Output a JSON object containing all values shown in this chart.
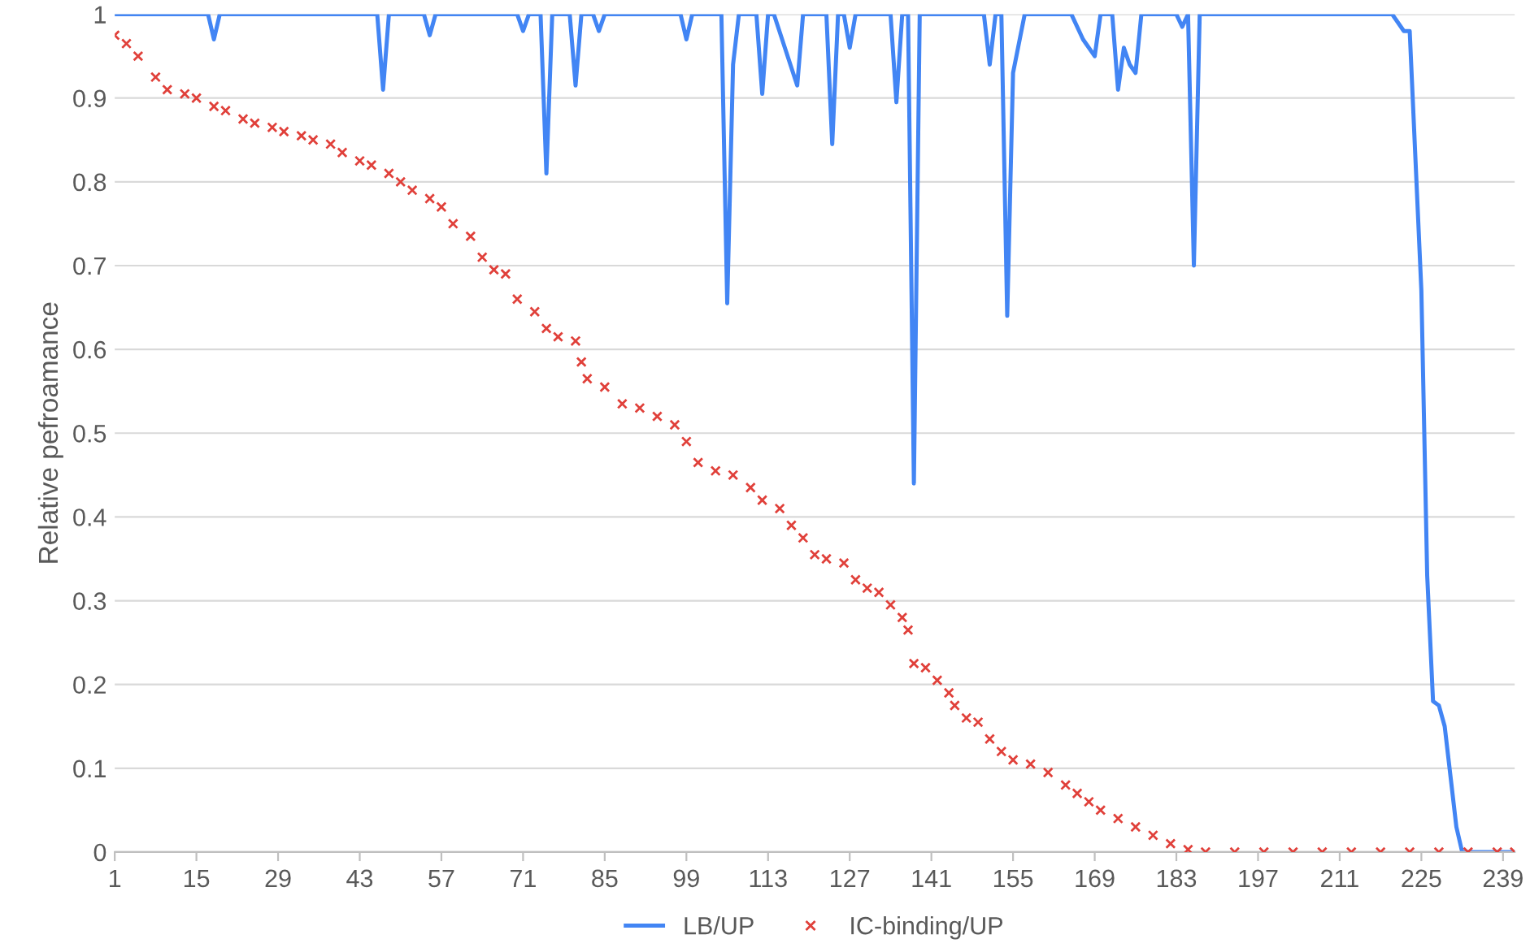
{
  "chart_data": {
    "type": "line",
    "ylabel": "Relative pefroamance",
    "xlim": [
      1,
      241
    ],
    "xticks": [
      1,
      15,
      29,
      43,
      57,
      71,
      85,
      99,
      113,
      127,
      141,
      155,
      169,
      183,
      197,
      211,
      225,
      239
    ],
    "ylim": [
      0,
      1
    ],
    "yticks": [
      0,
      0.1,
      0.2,
      0.3,
      0.4,
      0.5,
      0.6,
      0.7,
      0.8,
      0.9,
      1
    ],
    "grid": "y",
    "legend": "bottom",
    "series": [
      {
        "name": "LB/UP",
        "marker": "none",
        "color": "#4285f4",
        "x": [
          1,
          17,
          18,
          19,
          46,
          47,
          48,
          54,
          55,
          56,
          70,
          71,
          72,
          74,
          75,
          76,
          79,
          80,
          81,
          83,
          84,
          85,
          98,
          99,
          100,
          105,
          106,
          107,
          108,
          111,
          112,
          113,
          114,
          118,
          119,
          123,
          124,
          125,
          126,
          127,
          128,
          134,
          135,
          136,
          137,
          138,
          139,
          150,
          151,
          152,
          153,
          154,
          155,
          157,
          165,
          167,
          169,
          170,
          172,
          173,
          174,
          175,
          176,
          177,
          183,
          184,
          185,
          186,
          187,
          220,
          222,
          223,
          225,
          226,
          227,
          228,
          229,
          230,
          231,
          232,
          241
        ],
        "values": [
          1,
          1,
          0.97,
          1,
          1,
          0.91,
          1,
          1,
          0.975,
          1,
          1,
          0.98,
          1,
          1,
          0.81,
          1,
          1,
          0.915,
          1,
          1,
          0.98,
          1,
          1,
          0.97,
          1,
          1,
          0.655,
          0.94,
          1,
          1,
          0.905,
          1,
          1,
          0.915,
          1,
          1,
          0.845,
          1,
          1,
          0.96,
          1,
          1,
          0.895,
          1,
          1,
          0.44,
          1,
          1,
          0.94,
          1,
          1,
          0.64,
          0.93,
          1,
          1,
          0.97,
          0.95,
          1,
          1,
          0.91,
          0.96,
          0.94,
          0.93,
          1,
          1,
          0.985,
          1,
          0.7,
          1,
          1,
          0.98,
          0.98,
          0.67,
          0.33,
          0.18,
          0.175,
          0.15,
          0.09,
          0.03,
          0,
          0
        ]
      },
      {
        "name": "IC-binding/UP",
        "type": "scatter",
        "marker": "cross",
        "color": "#e0403a",
        "x": [
          1,
          3,
          5,
          8,
          10,
          13,
          15,
          18,
          20,
          23,
          25,
          28,
          30,
          33,
          35,
          38,
          40,
          43,
          45,
          48,
          50,
          52,
          55,
          57,
          59,
          62,
          64,
          66,
          68,
          70,
          73,
          75,
          77,
          80,
          81,
          82,
          85,
          88,
          91,
          94,
          97,
          99,
          101,
          104,
          107,
          110,
          112,
          115,
          117,
          119,
          121,
          123,
          126,
          128,
          130,
          132,
          134,
          136,
          137,
          138,
          140,
          142,
          144,
          145,
          147,
          149,
          151,
          153,
          155,
          158,
          161,
          164,
          166,
          168,
          170,
          173,
          176,
          179,
          182,
          185,
          188,
          193,
          198,
          203,
          208,
          213,
          218,
          223,
          228,
          233,
          238,
          241
        ],
        "values": [
          0.975,
          0.965,
          0.95,
          0.925,
          0.91,
          0.905,
          0.9,
          0.89,
          0.885,
          0.875,
          0.87,
          0.865,
          0.86,
          0.855,
          0.85,
          0.845,
          0.835,
          0.825,
          0.82,
          0.81,
          0.8,
          0.79,
          0.78,
          0.77,
          0.75,
          0.735,
          0.71,
          0.695,
          0.69,
          0.66,
          0.645,
          0.625,
          0.615,
          0.61,
          0.585,
          0.565,
          0.555,
          0.535,
          0.53,
          0.52,
          0.51,
          0.49,
          0.465,
          0.455,
          0.45,
          0.435,
          0.42,
          0.41,
          0.39,
          0.375,
          0.355,
          0.35,
          0.345,
          0.325,
          0.315,
          0.31,
          0.295,
          0.28,
          0.265,
          0.225,
          0.22,
          0.205,
          0.19,
          0.175,
          0.16,
          0.155,
          0.135,
          0.12,
          0.11,
          0.105,
          0.095,
          0.08,
          0.07,
          0.06,
          0.05,
          0.04,
          0.03,
          0.02,
          0.01,
          0.003,
          0,
          0,
          0,
          0,
          0,
          0,
          0,
          0,
          0,
          0,
          0,
          0
        ]
      }
    ]
  }
}
